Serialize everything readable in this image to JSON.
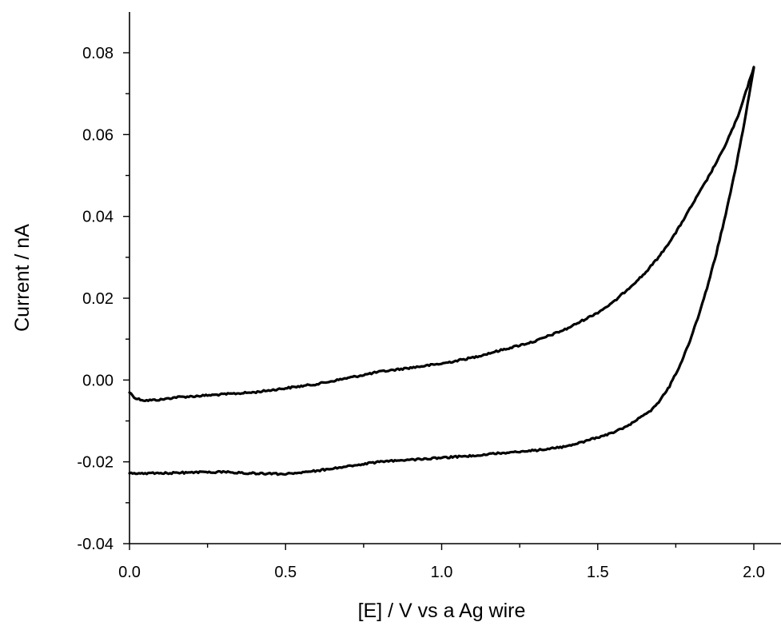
{
  "chart_data": {
    "type": "line",
    "title": "",
    "xlabel": "[E] / V vs a Ag wire",
    "ylabel": "Current / nA",
    "xlim": [
      0.0,
      2.0
    ],
    "ylim": [
      -0.04,
      0.09
    ],
    "x_ticks": [
      0.0,
      0.5,
      1.0,
      1.5,
      2.0
    ],
    "x_tick_labels": [
      "0.0",
      "0.5",
      "1.0",
      "1.5",
      "2.0"
    ],
    "y_ticks": [
      -0.04,
      -0.02,
      0.0,
      0.02,
      0.04,
      0.06,
      0.08
    ],
    "y_tick_labels": [
      "-0.04",
      "-0.02",
      "0.00",
      "0.02",
      "0.04",
      "0.06",
      "0.08"
    ],
    "grid": false,
    "legend": "none",
    "series": [
      {
        "color": "#000000",
        "x": [
          0.0,
          0.02,
          0.05,
          0.1,
          0.15,
          0.2,
          0.3,
          0.4,
          0.5,
          0.6,
          0.7,
          0.8,
          0.9,
          1.0,
          1.1,
          1.2,
          1.3,
          1.4,
          1.5,
          1.55,
          1.6,
          1.65,
          1.7,
          1.75,
          1.8,
          1.85,
          1.9,
          1.95,
          2.0
        ],
        "y": [
          -0.003,
          -0.0045,
          -0.005,
          -0.0048,
          -0.0042,
          -0.004,
          -0.0035,
          -0.003,
          -0.002,
          -0.001,
          0.0005,
          0.002,
          0.003,
          0.004,
          0.0055,
          0.0075,
          0.0095,
          0.0125,
          0.0165,
          0.019,
          0.0225,
          0.026,
          0.0305,
          0.036,
          0.0425,
          0.049,
          0.056,
          0.0645,
          0.0765
        ]
      },
      {
        "color": "#000000",
        "x": [
          2.0,
          1.97,
          1.94,
          1.91,
          1.88,
          1.85,
          1.82,
          1.79,
          1.76,
          1.73,
          1.7,
          1.67,
          1.64,
          1.61,
          1.58,
          1.55,
          1.5,
          1.45,
          1.4,
          1.3,
          1.2,
          1.1,
          1.0,
          0.9,
          0.8,
          0.7,
          0.6,
          0.5,
          0.4,
          0.3,
          0.2,
          0.1,
          0.0
        ],
        "y": [
          0.0765,
          0.063,
          0.051,
          0.0405,
          0.031,
          0.0225,
          0.015,
          0.0085,
          0.003,
          -0.0015,
          -0.005,
          -0.0075,
          -0.009,
          -0.0105,
          -0.0118,
          -0.0128,
          -0.014,
          -0.0152,
          -0.0162,
          -0.0172,
          -0.0178,
          -0.0185,
          -0.019,
          -0.0195,
          -0.02,
          -0.021,
          -0.0222,
          -0.023,
          -0.0228,
          -0.0225,
          -0.0226,
          -0.0228,
          -0.0228
        ]
      }
    ]
  }
}
